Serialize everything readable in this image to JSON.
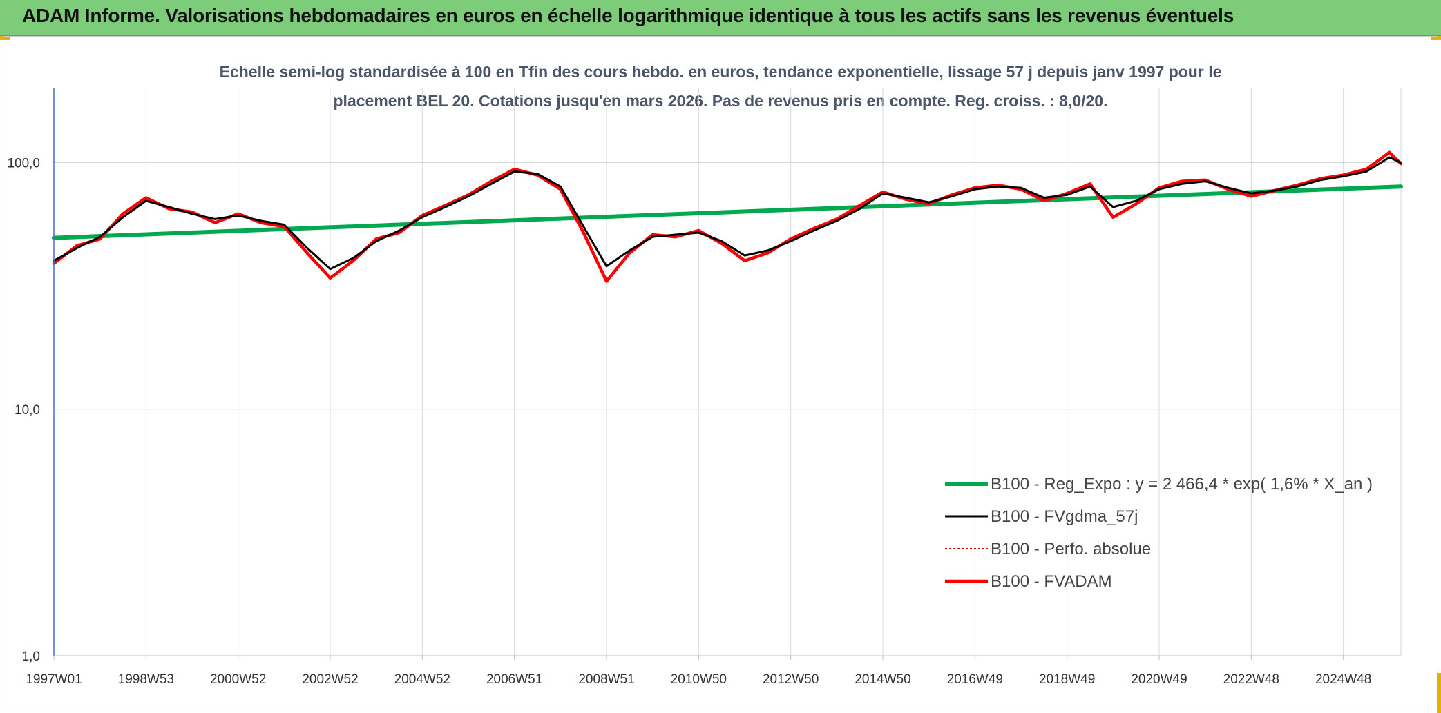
{
  "banner": {
    "title": "ADAM Informe. Valorisations hebdomadaires en euros en échelle logarithmique identique à tous les actifs sans les revenus éventuels"
  },
  "colors": {
    "banner_bg": "#7ccc7a",
    "trend": "#00a84f",
    "smoothed": "#000000",
    "absolute": "#e00000",
    "fvadam": "#ff0000",
    "grid": "#d9d9d9"
  },
  "chart_data": {
    "type": "line",
    "title_line1": "Echelle semi-log standardisée à 100 en Tfin des cours hebdo. en euros, tendance exponentielle, lissage 57 j depuis janv 1997 pour le",
    "title_line2": "placement BEL 20. Cotations jusqu'en mars 2026. Pas de revenus pris en compte. Reg. croiss. : 8,0/20.",
    "y_scale": "log",
    "ylim": [
      1,
      200
    ],
    "y_ticks": [
      {
        "value": 1,
        "label": "1,0"
      },
      {
        "value": 10,
        "label": "10,0"
      },
      {
        "value": 100,
        "label": "100,0"
      }
    ],
    "xlim": [
      1997.0,
      2026.25
    ],
    "x_ticks": [
      {
        "value": 1997.0,
        "label": "1997W01"
      },
      {
        "value": 1999.0,
        "label": "1998W53"
      },
      {
        "value": 2001.0,
        "label": "2000W52"
      },
      {
        "value": 2003.0,
        "label": "2002W52"
      },
      {
        "value": 2005.0,
        "label": "2004W52"
      },
      {
        "value": 2007.0,
        "label": "2006W51"
      },
      {
        "value": 2009.0,
        "label": "2008W51"
      },
      {
        "value": 2011.0,
        "label": "2010W50"
      },
      {
        "value": 2013.0,
        "label": "2012W50"
      },
      {
        "value": 2015.0,
        "label": "2014W50"
      },
      {
        "value": 2017.0,
        "label": "2016W49"
      },
      {
        "value": 2019.0,
        "label": "2018W49"
      },
      {
        "value": 2021.0,
        "label": "2020W49"
      },
      {
        "value": 2023.0,
        "label": "2022W48"
      },
      {
        "value": 2025.0,
        "label": "2024W48"
      }
    ],
    "grid": true,
    "legend_position": "lower-right",
    "series": [
      {
        "name": "B100 - Reg_Expo : y = 2 466,4 * exp( 1,6% *  X_an )",
        "style": "trend",
        "x": [
          1997.0,
          2026.25
        ],
        "y": [
          49.5,
          80.0
        ]
      },
      {
        "name": "B100 - FVgdma_57j",
        "style": "smoothed",
        "x": [
          1997.0,
          1997.5,
          1998.0,
          1998.5,
          1999.0,
          1999.5,
          2000.0,
          2000.5,
          2001.0,
          2001.5,
          2002.0,
          2002.5,
          2003.0,
          2003.5,
          2004.0,
          2004.5,
          2005.0,
          2005.5,
          2006.0,
          2006.5,
          2007.0,
          2007.5,
          2008.0,
          2008.5,
          2009.0,
          2009.5,
          2010.0,
          2010.5,
          2011.0,
          2011.5,
          2012.0,
          2012.5,
          2013.0,
          2013.5,
          2014.0,
          2014.5,
          2015.0,
          2015.5,
          2016.0,
          2016.5,
          2017.0,
          2017.5,
          2018.0,
          2018.5,
          2019.0,
          2019.5,
          2020.0,
          2020.5,
          2021.0,
          2021.5,
          2022.0,
          2022.5,
          2023.0,
          2023.5,
          2024.0,
          2024.5,
          2025.0,
          2025.5,
          2026.0,
          2026.25
        ],
        "y": [
          40,
          45,
          50,
          60,
          70,
          66,
          62,
          59,
          61,
          58,
          56,
          45,
          37,
          41,
          48,
          53,
          60,
          66,
          73,
          82,
          92,
          90,
          80,
          55,
          38,
          44,
          50,
          51,
          52,
          48,
          42,
          44,
          48,
          53,
          58,
          65,
          75,
          72,
          69,
          73,
          78,
          80,
          79,
          72,
          74,
          80,
          66,
          70,
          78,
          82,
          84,
          79,
          75,
          77,
          80,
          85,
          88,
          92,
          105,
          100
        ]
      },
      {
        "name": "B100 - Perfo. absolue",
        "style": "absolute",
        "x": [
          1997.0,
          1997.5,
          1998.0,
          1998.5,
          1999.0,
          1999.5,
          2000.0,
          2000.5,
          2001.0,
          2001.5,
          2002.0,
          2002.5,
          2003.0,
          2003.5,
          2004.0,
          2004.5,
          2005.0,
          2005.5,
          2006.0,
          2006.5,
          2007.0,
          2007.5,
          2008.0,
          2008.5,
          2009.0,
          2009.5,
          2010.0,
          2010.5,
          2011.0,
          2011.5,
          2012.0,
          2012.5,
          2013.0,
          2013.5,
          2014.0,
          2014.5,
          2015.0,
          2015.5,
          2016.0,
          2016.5,
          2017.0,
          2017.5,
          2018.0,
          2018.5,
          2019.0,
          2019.5,
          2020.0,
          2020.5,
          2021.0,
          2021.5,
          2022.0,
          2022.5,
          2023.0,
          2023.5,
          2024.0,
          2024.5,
          2025.0,
          2025.5,
          2026.0,
          2026.25
        ],
        "y": [
          39,
          46,
          49,
          62,
          72,
          65,
          63,
          57,
          62,
          57,
          55,
          43,
          34,
          40,
          49,
          52,
          61,
          67,
          74,
          84,
          94,
          89,
          78,
          52,
          33,
          43,
          51,
          50,
          53,
          47,
          40,
          43,
          49,
          54,
          59,
          67,
          76,
          71,
          68,
          74,
          79,
          81,
          78,
          70,
          75,
          82,
          60,
          68,
          79,
          84,
          85,
          78,
          73,
          77,
          81,
          86,
          89,
          94,
          110,
          99
        ]
      },
      {
        "name": "B100 - FVADAM",
        "style": "fvadam",
        "x": [
          1997.0,
          1997.5,
          1998.0,
          1998.5,
          1999.0,
          1999.5,
          2000.0,
          2000.5,
          2001.0,
          2001.5,
          2002.0,
          2002.5,
          2003.0,
          2003.5,
          2004.0,
          2004.5,
          2005.0,
          2005.5,
          2006.0,
          2006.5,
          2007.0,
          2007.5,
          2008.0,
          2008.5,
          2009.0,
          2009.5,
          2010.0,
          2010.5,
          2011.0,
          2011.5,
          2012.0,
          2012.5,
          2013.0,
          2013.5,
          2014.0,
          2014.5,
          2015.0,
          2015.5,
          2016.0,
          2016.5,
          2017.0,
          2017.5,
          2018.0,
          2018.5,
          2019.0,
          2019.5,
          2020.0,
          2020.5,
          2021.0,
          2021.5,
          2022.0,
          2022.5,
          2023.0,
          2023.5,
          2024.0,
          2024.5,
          2025.0,
          2025.5,
          2026.0,
          2026.25
        ],
        "y": [
          39,
          46,
          49,
          62,
          72,
          65,
          63,
          57,
          62,
          57,
          55,
          43,
          34,
          40,
          49,
          52,
          61,
          67,
          74,
          84,
          94,
          89,
          78,
          52,
          33,
          43,
          51,
          50,
          53,
          47,
          40,
          43,
          49,
          54,
          59,
          67,
          76,
          71,
          68,
          74,
          79,
          81,
          78,
          70,
          75,
          82,
          60,
          68,
          79,
          84,
          85,
          78,
          73,
          77,
          81,
          86,
          89,
          94,
          110,
          99
        ]
      }
    ]
  }
}
